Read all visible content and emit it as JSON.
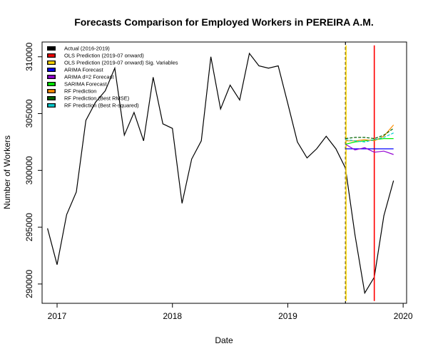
{
  "chart_data": {
    "type": "line",
    "title": "Forecasts Comparison for Employed Workers in PEREIRA A.M.",
    "xlabel": "Date",
    "ylabel": "Number of Workers",
    "xlim": [
      2016.87,
      2020.03
    ],
    "ylim": [
      288300,
      311300
    ],
    "x_ticks": [
      {
        "value": 2017,
        "label": "2017"
      },
      {
        "value": 2018,
        "label": "2018"
      },
      {
        "value": 2019,
        "label": "2019"
      },
      {
        "value": 2020,
        "label": "2020"
      }
    ],
    "y_ticks": [
      {
        "value": 290000,
        "label": "290000"
      },
      {
        "value": 295000,
        "label": "295000"
      },
      {
        "value": 300000,
        "label": "300000"
      },
      {
        "value": 305000,
        "label": "305000"
      },
      {
        "value": 310000,
        "label": "310000"
      }
    ],
    "legend_position": "top-left",
    "forecast_start_line": {
      "x": 2019.5,
      "color": "#000000",
      "style": "dashed"
    },
    "series": [
      {
        "name": "Actual (2016-2019)",
        "color": "#000000",
        "style": "solid",
        "x": [
          2016.917,
          2017.0,
          2017.083,
          2017.167,
          2017.25,
          2017.333,
          2017.417,
          2017.5,
          2017.583,
          2017.667,
          2017.75,
          2017.833,
          2017.917,
          2018.0,
          2018.083,
          2018.167,
          2018.25,
          2018.333,
          2018.417,
          2018.5,
          2018.583,
          2018.667,
          2018.75,
          2018.833,
          2018.917,
          2019.0,
          2019.083,
          2019.167,
          2019.25,
          2019.333,
          2019.417,
          2019.5,
          2019.583,
          2019.667,
          2019.75,
          2019.833,
          2019.917
        ],
        "y": [
          294900,
          291700,
          296100,
          298100,
          304400,
          306000,
          307000,
          309000,
          303100,
          305100,
          302600,
          308200,
          304100,
          303700,
          297100,
          301000,
          302600,
          310000,
          305400,
          307500,
          306200,
          310300,
          309200,
          309000,
          309200,
          305900,
          302500,
          301100,
          301900,
          303000,
          301900,
          300200,
          294300,
          289200,
          290600,
          296000,
          299100
        ]
      },
      {
        "name": "OLS Prediction (2019-07 onward)",
        "color": "#ff0000",
        "style": "solid",
        "x": [
          2019.75,
          2019.75
        ],
        "y": [
          288500,
          311000
        ]
      },
      {
        "name": "OLS Prediction (2019-07 onward) Sig. Variables",
        "color": "#ffd700",
        "style": "solid",
        "x": [
          2019.505,
          2019.505
        ],
        "y": [
          288500,
          311000
        ]
      },
      {
        "name": "ARIMA Forecast",
        "color": "#0000ff",
        "style": "solid",
        "x": [
          2019.5,
          2019.583,
          2019.667,
          2019.75,
          2019.833,
          2019.917
        ],
        "y": [
          301900,
          301900,
          301900,
          301900,
          301900,
          301900
        ]
      },
      {
        "name": "ARIMA d=2 Forecast",
        "color": "#9400d3",
        "style": "solid",
        "x": [
          2019.5,
          2019.583,
          2019.667,
          2019.75,
          2019.833,
          2019.917
        ],
        "y": [
          302300,
          301800,
          302000,
          301600,
          301700,
          301400
        ]
      },
      {
        "name": "SARIMA Forecast",
        "color": "#00ee00",
        "style": "solid",
        "x": [
          2019.5,
          2019.583,
          2019.667,
          2019.75,
          2019.833,
          2019.917
        ],
        "y": [
          302300,
          302500,
          302600,
          302700,
          302800,
          302800
        ]
      },
      {
        "name": "RF Prediction",
        "color": "#ff8c00",
        "style": "solid",
        "x": [
          2019.5,
          2019.583,
          2019.667,
          2019.75,
          2019.833,
          2019.917
        ],
        "y": [
          302600,
          302600,
          302700,
          302600,
          303000,
          304000
        ]
      },
      {
        "name": "RF Prediction (Best RMSE)",
        "color": "#006400",
        "style": "dashed",
        "x": [
          2019.5,
          2019.583,
          2019.667,
          2019.75,
          2019.833,
          2019.917
        ],
        "y": [
          302800,
          302900,
          302900,
          302800,
          303100,
          303700
        ]
      },
      {
        "name": "RF Prediction (Best R-squared)",
        "color": "#00ced1",
        "style": "dashed",
        "x": [
          2019.5,
          2019.583,
          2019.667,
          2019.75,
          2019.833,
          2019.917
        ],
        "y": [
          302700,
          302600,
          302500,
          302700,
          302900,
          303300
        ]
      }
    ]
  }
}
